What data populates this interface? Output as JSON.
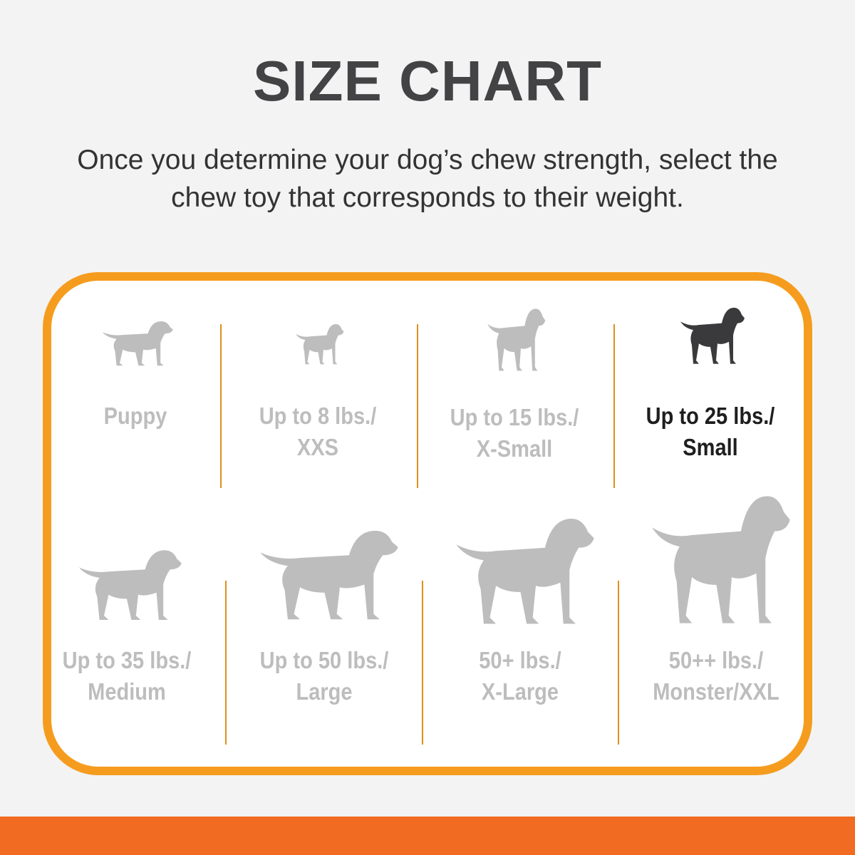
{
  "title": "SIZE CHART",
  "subtitle": [
    "Once you determine your dog’s chew strength, select the",
    "chew toy that corresponds to their weight."
  ],
  "colors": {
    "border": "#f59c1e",
    "bottom_bar": "#f26b22",
    "inactive": "#bdbdbd",
    "active": "#1e1e1e"
  },
  "sizes": [
    {
      "line1": "Puppy",
      "line2": "",
      "icon": "puppy-icon",
      "active": false
    },
    {
      "line1": "Up to 8 lbs./",
      "line2": "XXS",
      "icon": "chihuahua-icon",
      "active": false
    },
    {
      "line1": "Up to 15 lbs./",
      "line2": "X-Small",
      "icon": "toy-terrier-icon",
      "active": false
    },
    {
      "line1": "Up to 25 lbs./",
      "line2": "Small",
      "icon": "terrier-icon",
      "active": true
    },
    {
      "line1": "Up to 35 lbs./",
      "line2": "Medium",
      "icon": "beagle-icon",
      "active": false
    },
    {
      "line1": "Up to 50 lbs./",
      "line2": "Large",
      "icon": "labrador-icon",
      "active": false
    },
    {
      "line1": "50+ lbs./",
      "line2": "X-Large",
      "icon": "shepherd-icon",
      "active": false
    },
    {
      "line1": "50++ lbs./",
      "line2": "Monster/XXL",
      "icon": "great-dane-icon",
      "active": false
    }
  ]
}
